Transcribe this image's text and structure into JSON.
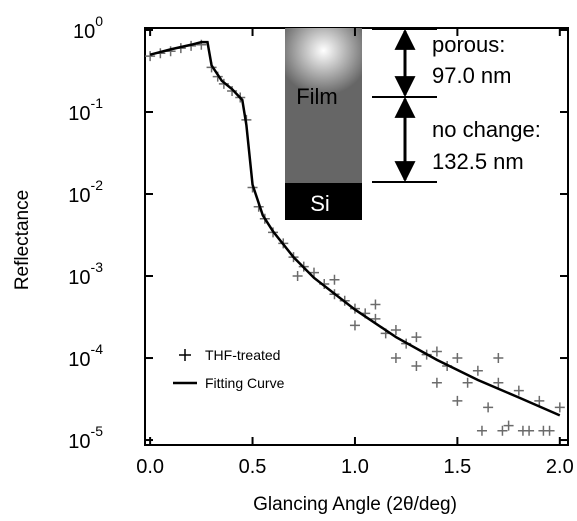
{
  "chart_data": {
    "type": "scatter-fit",
    "x_label": "Glancing Angle (2θ/deg)",
    "y_label": "Reflectance",
    "yscale": "log",
    "xlim": [
      -0.025,
      2.04
    ],
    "ylim": [
      8.7e-06,
      1.057
    ],
    "xticks": [
      {
        "value": 0,
        "label": "0.0"
      },
      0.5,
      {
        "value": 1,
        "label": "1.0"
      },
      1.5,
      {
        "value": 2,
        "label": "2.0"
      }
    ],
    "yticks": [
      {
        "value": 1,
        "label": "10",
        "exponent": "0"
      },
      {
        "value": 0.1,
        "label": "10",
        "exponent": "-1"
      },
      {
        "value": 0.01,
        "label": "10",
        "exponent": "-2"
      },
      {
        "value": 0.001,
        "label": "10",
        "exponent": "-3"
      },
      {
        "value": 0.0001,
        "label": "10",
        "exponent": "-4"
      },
      {
        "value": 1e-05,
        "label": "10",
        "exponent": "-5"
      }
    ],
    "series": [
      {
        "name": "THF-treated",
        "kind": "scatter",
        "color": "#6b6b6b",
        "x": [
          0.0,
          0.05,
          0.1,
          0.15,
          0.2,
          0.25,
          0.3,
          0.33,
          0.36,
          0.4,
          0.44,
          0.47,
          0.5,
          0.53,
          0.56,
          0.6,
          0.65,
          0.7,
          0.72,
          0.75,
          0.8,
          0.85,
          0.9,
          0.9,
          0.95,
          1.0,
          1.0,
          1.05,
          1.1,
          1.1,
          1.15,
          1.2,
          1.2,
          1.25,
          1.3,
          1.3,
          1.35,
          1.4,
          1.4,
          1.45,
          1.5,
          1.5,
          1.55,
          1.6,
          1.62,
          1.65,
          1.7,
          1.7,
          1.72,
          1.75,
          1.8,
          1.82,
          1.85,
          1.9,
          1.92,
          1.95,
          2.0
        ],
        "values": [
          0.48,
          0.52,
          0.55,
          0.6,
          0.64,
          0.66,
          0.35,
          0.27,
          0.22,
          0.18,
          0.15,
          0.08,
          0.012,
          0.007,
          0.005,
          0.0034,
          0.0025,
          0.0017,
          0.001,
          0.0013,
          0.0011,
          0.0008,
          0.0006,
          0.0009,
          0.0005,
          0.0004,
          0.00025,
          0.00035,
          0.0003,
          0.00045,
          0.0002,
          0.00022,
          0.0001,
          0.00015,
          0.00018,
          8e-05,
          0.00011,
          0.00012,
          5e-05,
          8e-05,
          0.0001,
          3e-05,
          5e-05,
          7e-05,
          1.3e-05,
          2.5e-05,
          5e-05,
          0.0001,
          1.3e-05,
          1.5e-05,
          4e-05,
          1.3e-05,
          1.3e-05,
          3e-05,
          1.3e-05,
          1.3e-05,
          2.5e-05
        ]
      },
      {
        "name": "Fitting Curve",
        "kind": "line",
        "color": "#000000",
        "x": [
          0.0,
          0.1,
          0.2,
          0.25,
          0.28,
          0.3,
          0.35,
          0.4,
          0.45,
          0.47,
          0.5,
          0.55,
          0.6,
          0.7,
          0.8,
          1.0,
          1.2,
          1.4,
          1.6,
          1.8,
          2.0
        ],
        "values": [
          0.5,
          0.58,
          0.66,
          0.71,
          0.71,
          0.37,
          0.24,
          0.19,
          0.14,
          0.069,
          0.013,
          0.0055,
          0.0035,
          0.0017,
          0.00095,
          0.00039,
          0.00018,
          9.5e-05,
          5.4e-05,
          3.3e-05,
          2e-05
        ]
      }
    ],
    "inset": {
      "film": "Film",
      "substrate": "Si",
      "layers": [
        {
          "label": "porous:",
          "thickness": "97.0 nm"
        },
        {
          "label": "no change:",
          "thickness": "132.5 nm"
        }
      ]
    }
  }
}
